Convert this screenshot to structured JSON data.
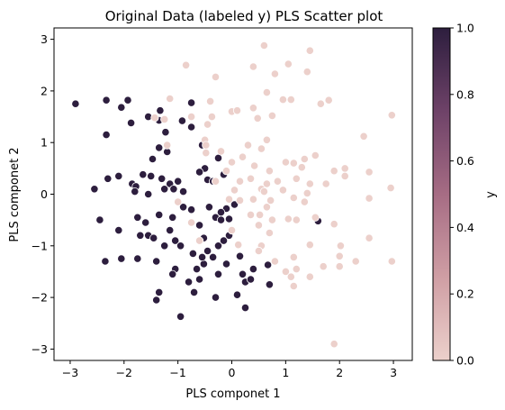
{
  "chart_data": {
    "type": "scatter",
    "title": "Original Data (labeled y) PLS Scatter plot",
    "xlabel": "PLS componet 1",
    "ylabel": "PLS componet 2",
    "xlim": [
      -3.3,
      3.35
    ],
    "ylim": [
      -3.22,
      3.22
    ],
    "x_ticks": [
      "−3",
      "−2",
      "−1",
      "0",
      "1",
      "2",
      "3"
    ],
    "y_ticks": [
      "−3",
      "−2",
      "−1",
      "0",
      "1",
      "2",
      "3"
    ],
    "grid": false,
    "legend": "none",
    "colorbar": {
      "label": "y",
      "range": [
        0,
        1
      ],
      "ticks": [
        "0.0",
        "0.2",
        "0.4",
        "0.6",
        "0.8",
        "1.0"
      ],
      "color_low": "#ecd0cb",
      "color_high": "#2d1e3e"
    },
    "series": [
      {
        "y_value": 1,
        "color": "#2d1e3e",
        "points": [
          [
            -2.9,
            1.75
          ],
          [
            -2.33,
            1.82
          ],
          [
            -2.33,
            1.15
          ],
          [
            -2.05,
            1.68
          ],
          [
            -1.93,
            1.82
          ],
          [
            -1.87,
            1.38
          ],
          [
            -1.55,
            1.5
          ],
          [
            -1.35,
            1.43
          ],
          [
            -1.33,
            1.62
          ],
          [
            -1.23,
            1.2
          ],
          [
            -0.92,
            1.42
          ],
          [
            -0.75,
            1.3
          ],
          [
            -0.75,
            1.77
          ],
          [
            -1.35,
            0.9
          ],
          [
            -1.2,
            0.82
          ],
          [
            -1.47,
            0.68
          ],
          [
            -0.55,
            0.95
          ],
          [
            -0.25,
            0.7
          ],
          [
            -0.5,
            0.5
          ],
          [
            -0.45,
            0.28
          ],
          [
            -2.55,
            0.1
          ],
          [
            -2.3,
            0.3
          ],
          [
            -2.1,
            0.35
          ],
          [
            -1.85,
            0.2
          ],
          [
            -1.65,
            0.38
          ],
          [
            -1.5,
            0.35
          ],
          [
            -1.78,
            0.15
          ],
          [
            -1.55,
            0.0
          ],
          [
            -1.3,
            0.3
          ],
          [
            -1.15,
            0.2
          ],
          [
            -1.25,
            0.1
          ],
          [
            -1.08,
            0.1
          ],
          [
            -1.0,
            0.25
          ],
          [
            -0.9,
            0.05
          ],
          [
            -0.6,
            0.43
          ],
          [
            -0.35,
            0.25
          ],
          [
            -0.15,
            0.38
          ],
          [
            0.05,
            -0.2
          ],
          [
            -0.05,
            -0.48
          ],
          [
            -2.45,
            -0.5
          ],
          [
            -2.1,
            -0.7
          ],
          [
            -1.75,
            -0.45
          ],
          [
            -1.7,
            -0.8
          ],
          [
            -1.6,
            -0.55
          ],
          [
            -1.35,
            -0.4
          ],
          [
            -1.1,
            -0.45
          ],
          [
            -1.15,
            -0.7
          ],
          [
            -0.9,
            -0.25
          ],
          [
            -0.75,
            -0.3
          ],
          [
            -0.6,
            -0.6
          ],
          [
            -0.42,
            -0.25
          ],
          [
            -0.3,
            -0.45
          ],
          [
            -0.2,
            -0.5
          ],
          [
            -0.1,
            -0.28
          ],
          [
            -0.2,
            -0.35
          ],
          [
            -1.55,
            -0.8
          ],
          [
            -1.45,
            -0.85
          ],
          [
            -1.25,
            -1.0
          ],
          [
            -1.05,
            -0.9
          ],
          [
            -0.95,
            -1.0
          ],
          [
            -0.72,
            -1.15
          ],
          [
            -0.52,
            -0.85
          ],
          [
            -0.45,
            -1.1
          ],
          [
            -0.35,
            -1.22
          ],
          [
            -0.25,
            -1.0
          ],
          [
            -0.15,
            -0.9
          ],
          [
            -0.05,
            -0.8
          ],
          [
            0.15,
            -1.2
          ],
          [
            0.4,
            -1.45
          ],
          [
            -2.35,
            -1.3
          ],
          [
            -2.05,
            -1.25
          ],
          [
            -1.75,
            -1.25
          ],
          [
            -1.4,
            -1.3
          ],
          [
            -1.05,
            -1.45
          ],
          [
            -0.65,
            -1.45
          ],
          [
            -0.52,
            -1.35
          ],
          [
            -0.8,
            -1.7
          ],
          [
            -0.6,
            -1.65
          ],
          [
            -1.1,
            -1.55
          ],
          [
            -0.25,
            -1.55
          ],
          [
            -0.1,
            -1.35
          ],
          [
            0.2,
            -1.55
          ],
          [
            0.25,
            -1.7
          ],
          [
            0.35,
            -1.65
          ],
          [
            -1.35,
            -1.9
          ],
          [
            -1.4,
            -2.05
          ],
          [
            -0.7,
            -1.9
          ],
          [
            -0.3,
            -2.0
          ],
          [
            0.1,
            -1.95
          ],
          [
            0.25,
            -2.2
          ],
          [
            -0.95,
            -2.37
          ],
          [
            0.7,
            -1.75
          ],
          [
            0.67,
            -1.37
          ],
          [
            1.6,
            -0.52
          ],
          [
            -0.55,
            -1.22
          ],
          [
            -1.8,
            0.05
          ]
        ]
      },
      {
        "y_value": 0,
        "color": "#ecd0cb",
        "points": [
          [
            0.6,
            2.88
          ],
          [
            1.45,
            2.78
          ],
          [
            -0.85,
            2.5
          ],
          [
            0.4,
            2.47
          ],
          [
            1.05,
            2.52
          ],
          [
            -0.3,
            2.27
          ],
          [
            0.8,
            2.33
          ],
          [
            1.4,
            2.37
          ],
          [
            0.65,
            1.97
          ],
          [
            -1.15,
            1.85
          ],
          [
            0.95,
            1.83
          ],
          [
            1.1,
            1.83
          ],
          [
            1.8,
            1.82
          ],
          [
            -1.43,
            1.48
          ],
          [
            -0.75,
            1.5
          ],
          [
            -0.4,
            1.8
          ],
          [
            -0.37,
            1.5
          ],
          [
            0.0,
            1.6
          ],
          [
            0.1,
            1.62
          ],
          [
            0.4,
            1.67
          ],
          [
            0.48,
            1.47
          ],
          [
            0.75,
            1.52
          ],
          [
            1.65,
            1.75
          ],
          [
            -1.25,
            1.45
          ],
          [
            -0.45,
            1.35
          ],
          [
            -0.5,
            1.05
          ],
          [
            0.65,
            1.05
          ],
          [
            2.45,
            1.12
          ],
          [
            2.97,
            1.53
          ],
          [
            -0.48,
            0.95
          ],
          [
            -1.2,
            0.95
          ],
          [
            -0.48,
            0.8
          ],
          [
            -0.2,
            0.83
          ],
          [
            0.3,
            0.95
          ],
          [
            0.55,
            0.88
          ],
          [
            1.15,
            0.6
          ],
          [
            1.35,
            0.68
          ],
          [
            1.55,
            0.75
          ],
          [
            -0.1,
            0.45
          ],
          [
            0.0,
            0.62
          ],
          [
            0.2,
            0.72
          ],
          [
            0.42,
            0.55
          ],
          [
            0.7,
            0.45
          ],
          [
            1.0,
            0.62
          ],
          [
            1.3,
            0.52
          ],
          [
            1.9,
            0.45
          ],
          [
            2.1,
            0.5
          ],
          [
            2.1,
            0.35
          ],
          [
            -0.3,
            0.25
          ],
          [
            0.15,
            0.25
          ],
          [
            0.35,
            0.3
          ],
          [
            0.65,
            0.2
          ],
          [
            0.85,
            0.25
          ],
          [
            1.2,
            0.3
          ],
          [
            1.45,
            0.2
          ],
          [
            0.05,
            0.08
          ],
          [
            0.55,
            0.1
          ],
          [
            0.6,
            0.05
          ],
          [
            0.95,
            0.08
          ],
          [
            1.4,
            0.02
          ],
          [
            1.75,
            0.2
          ],
          [
            2.55,
            0.43
          ],
          [
            2.95,
            0.12
          ],
          [
            0.15,
            -0.12
          ],
          [
            0.4,
            -0.1
          ],
          [
            0.65,
            -0.25
          ],
          [
            0.72,
            -0.12
          ],
          [
            1.15,
            -0.07
          ],
          [
            1.35,
            -0.15
          ],
          [
            2.55,
            -0.08
          ],
          [
            0.35,
            -0.4
          ],
          [
            0.52,
            -0.4
          ],
          [
            0.75,
            -0.5
          ],
          [
            1.05,
            -0.48
          ],
          [
            1.2,
            -0.5
          ],
          [
            0.5,
            -0.6
          ],
          [
            1.55,
            -0.45
          ],
          [
            1.9,
            -0.58
          ],
          [
            0.0,
            -0.7
          ],
          [
            0.7,
            -0.75
          ],
          [
            2.55,
            -0.85
          ],
          [
            0.12,
            -0.98
          ],
          [
            0.55,
            -1.0
          ],
          [
            1.45,
            -0.98
          ],
          [
            2.02,
            -1.0
          ],
          [
            0.5,
            -1.1
          ],
          [
            1.15,
            -1.22
          ],
          [
            2.0,
            -1.2
          ],
          [
            0.8,
            -1.3
          ],
          [
            1.2,
            -1.45
          ],
          [
            1.7,
            -1.4
          ],
          [
            2.0,
            -1.4
          ],
          [
            2.3,
            -1.3
          ],
          [
            1.0,
            -1.5
          ],
          [
            2.97,
            -1.3
          ],
          [
            1.1,
            -1.6
          ],
          [
            1.45,
            -1.6
          ],
          [
            1.15,
            -1.78
          ],
          [
            1.9,
            -2.9
          ],
          [
            -1.0,
            -0.15
          ],
          [
            -0.75,
            -0.55
          ],
          [
            -0.6,
            -0.9
          ],
          [
            -0.05,
            -0.1
          ]
        ]
      }
    ]
  }
}
